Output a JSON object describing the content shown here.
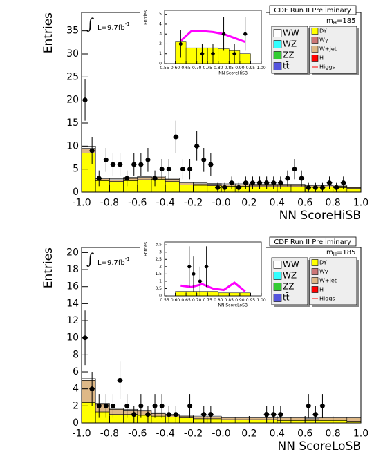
{
  "chart_data": [
    {
      "type": "histogram",
      "title": "CDF Run II Preliminary",
      "x_label": "NN ScoreHiSB",
      "y_label": "Entries",
      "mass_label": {
        "symbol": "m",
        "subscript": "H",
        "value": "=185"
      },
      "luminosity": {
        "symbol": "∫",
        "text": "L=9.7fb",
        "superscript": "-1"
      },
      "xlim": [
        -1,
        1
      ],
      "ylim": [
        0,
        39
      ],
      "xticks": [
        {
          "value": -1,
          "label": "-1.0"
        },
        -0.8,
        -0.6,
        -0.4,
        -0.2,
        {
          "value": 0,
          "label": "-0.0"
        },
        0.2,
        0.4,
        0.6,
        0.8,
        {
          "value": 1,
          "label": "1.0"
        }
      ],
      "yticks": [
        0,
        5,
        10,
        15,
        20,
        25,
        30,
        35
      ],
      "bins": [
        -1,
        -0.9,
        -0.8,
        -0.7,
        -0.6,
        -0.5,
        -0.4,
        -0.3,
        -0.2,
        -0.1,
        0,
        0.1,
        0.2,
        0.3,
        0.4,
        0.5,
        0.6,
        0.7,
        0.8,
        0.9,
        1
      ],
      "series": [
        {
          "name": "WW",
          "color": "#ffffff",
          "values": [
            0.5,
            0.2,
            0.2,
            0.2,
            0.2,
            0.2,
            0.2,
            0.2,
            0.2,
            0.2,
            0.2,
            0.2,
            0.2,
            0.2,
            0.2,
            0.2,
            0.2,
            0.2,
            0.2,
            0.1
          ]
        },
        {
          "name": "WZ",
          "color": "#33ffff"
        },
        {
          "name": "ZZ",
          "color": "#33cc33"
        },
        {
          "name": "tt̄",
          "color": "#5555dd"
        },
        {
          "name": "DY",
          "color": "#ffff00",
          "values": [
            8.5,
            2.5,
            2.3,
            2.5,
            2.7,
            2.8,
            2.3,
            1.6,
            1.5,
            1.4,
            1.3,
            1.3,
            1.2,
            1.2,
            1.2,
            1.2,
            1.1,
            1.1,
            1.0,
            0.8
          ]
        },
        {
          "name": "Wγ",
          "color": "#cc7777"
        },
        {
          "name": "W+jet",
          "color": "#deb887",
          "values": [
            1.0,
            0.4,
            0.4,
            0.5,
            0.5,
            0.5,
            0.5,
            0.4,
            0.3,
            0.3,
            0.3,
            0.3,
            0.3,
            0.3,
            0.3,
            0.3,
            0.3,
            0.3,
            0.3,
            0.2
          ]
        },
        {
          "name": "H",
          "color": "#ff0000"
        },
        {
          "name": "Higgs",
          "color": "#ff0000",
          "style": "line"
        }
      ],
      "data_points": {
        "x": [
          -0.975,
          -0.925,
          -0.875,
          -0.825,
          -0.775,
          -0.725,
          -0.675,
          -0.625,
          -0.575,
          -0.525,
          -0.475,
          -0.425,
          -0.375,
          -0.325,
          -0.275,
          -0.225,
          -0.175,
          -0.125,
          -0.075,
          -0.025,
          0.025,
          0.075,
          0.125,
          0.175,
          0.225,
          0.275,
          0.325,
          0.375,
          0.425,
          0.475,
          0.525,
          0.575,
          0.625,
          0.675,
          0.725,
          0.775,
          0.825,
          0.875
        ],
        "values": [
          20,
          9,
          3,
          7,
          6,
          6,
          3,
          6,
          6,
          7,
          3,
          5,
          5,
          12,
          5,
          5,
          10,
          7,
          6,
          1,
          1,
          2,
          1,
          2,
          2,
          2,
          2,
          2,
          2,
          3,
          5,
          3,
          1,
          1,
          1,
          2,
          1,
          2
        ],
        "errors": [
          4.5,
          3,
          1.7,
          2.6,
          2.4,
          2.4,
          1.7,
          2.4,
          2.4,
          2.6,
          1.7,
          2.2,
          2.2,
          3.5,
          2.2,
          2.2,
          3.2,
          2.6,
          2.4,
          1,
          1,
          1.4,
          1,
          1.4,
          1.4,
          1.4,
          1.4,
          1.4,
          1.4,
          1.7,
          2.2,
          1.7,
          1,
          1,
          1,
          1.4,
          1,
          1.4
        ]
      },
      "inset": {
        "x_label": "NN ScoreHiSB",
        "y_label": "Entries",
        "xlim": [
          0.55,
          1
        ],
        "ylim": [
          0,
          5.4
        ],
        "xticks": [
          0.55,
          {
            "value": 0.6,
            "label": "0.60"
          },
          0.65,
          {
            "value": 0.7,
            "label": "0.70"
          },
          0.75,
          {
            "value": 0.8,
            "label": "0.80"
          },
          0.85,
          {
            "value": 0.9,
            "label": "0.90"
          },
          0.95,
          {
            "value": 1,
            "label": "1.00"
          }
        ],
        "yticks": [
          0,
          1,
          2,
          3,
          4,
          5
        ],
        "bins": [
          0.6,
          0.65,
          0.7,
          0.75,
          0.8,
          0.85,
          0.9,
          0.95
        ],
        "series": [
          {
            "color": "#ffff00",
            "values": [
              2.2,
              1.6,
              1.6,
              1.6,
              1.5,
              1.3,
              1.0
            ]
          },
          {
            "color": "#ff00ff",
            "style": "line",
            "values": [
              2.3,
              3.3,
              3.3,
              3.2,
              3.0,
              2.6,
              2.2
            ]
          }
        ],
        "data_points": {
          "x": [
            0.625,
            0.725,
            0.775,
            0.825,
            0.875,
            0.925
          ],
          "values": [
            2,
            1,
            1,
            3,
            1,
            3
          ],
          "errors": [
            1.4,
            1,
            1,
            1.7,
            1,
            1.7
          ]
        }
      }
    },
    {
      "type": "histogram",
      "title": "CDF Run II Preliminary",
      "x_label": "NN ScoreLoSB",
      "y_label": "Entries",
      "mass_label": {
        "symbol": "m",
        "subscript": "H",
        "value": "=185"
      },
      "luminosity": {
        "symbol": "∫",
        "text": "L=9.7fb",
        "superscript": "-1"
      },
      "xlim": [
        -1,
        1
      ],
      "ylim": [
        0,
        20.6
      ],
      "xticks": [
        {
          "value": -1,
          "label": "-1.0"
        },
        -0.8,
        -0.6,
        -0.4,
        -0.2,
        {
          "value": 0,
          "label": "-0.0"
        },
        0.2,
        0.4,
        0.6,
        0.8,
        {
          "value": 1,
          "label": "1.0"
        }
      ],
      "yticks": [
        0,
        2,
        4,
        6,
        8,
        10,
        12,
        14,
        16,
        18,
        20
      ],
      "bins": [
        -1,
        -0.9,
        -0.8,
        -0.7,
        -0.6,
        -0.5,
        -0.4,
        -0.3,
        -0.2,
        -0.1,
        0,
        0.1,
        0.2,
        0.3,
        0.4,
        0.5,
        0.6,
        0.7,
        0.8,
        0.9,
        1
      ],
      "series": [
        {
          "name": "WW",
          "color": "#ffffff",
          "values": [
            0.2,
            0.1,
            0.1,
            0.1,
            0.1,
            0.1,
            0.1,
            0.1,
            0.1,
            0.1,
            0.1,
            0.1,
            0.1,
            0.1,
            0.1,
            0.1,
            0.1,
            0.1,
            0.1,
            0.1
          ]
        },
        {
          "name": "WZ",
          "color": "#33ffff"
        },
        {
          "name": "ZZ",
          "color": "#33cc33"
        },
        {
          "name": "tt̄",
          "color": "#5555dd"
        },
        {
          "name": "DY",
          "color": "#ffff00",
          "values": [
            2.4,
            1.3,
            1.0,
            1.0,
            0.9,
            0.8,
            0.7,
            0.6,
            0.5,
            0.5,
            0.4,
            0.4,
            0.4,
            0.4,
            0.3,
            0.3,
            0.3,
            0.3,
            0.3,
            0.2
          ]
        },
        {
          "name": "Wγ",
          "color": "#cc7777"
        },
        {
          "name": "W+jet",
          "color": "#deb887",
          "values": [
            2.6,
            0.9,
            0.6,
            0.5,
            0.5,
            0.3,
            0.2,
            0.2,
            0.2,
            0.2,
            0.2,
            0.2,
            0.2,
            0.2,
            0.3,
            0.3,
            0.2,
            0.3,
            0.3,
            0.4
          ]
        },
        {
          "name": "H",
          "color": "#ff0000"
        },
        {
          "name": "Higgs",
          "color": "#ff0000",
          "style": "line"
        }
      ],
      "data_points": {
        "x": [
          -0.975,
          -0.925,
          -0.875,
          -0.825,
          -0.775,
          -0.725,
          -0.675,
          -0.625,
          -0.575,
          -0.525,
          -0.475,
          -0.425,
          -0.375,
          -0.325,
          -0.225,
          -0.125,
          -0.075,
          0.325,
          0.375,
          0.425,
          0.625,
          0.675,
          0.725
        ],
        "values": [
          10,
          4,
          2,
          2,
          2,
          5,
          2,
          1,
          2,
          1,
          2,
          2,
          1,
          1,
          2,
          1,
          1,
          1,
          1,
          1,
          2,
          1,
          2
        ],
        "errors": [
          3.2,
          2,
          1.4,
          1.4,
          1.4,
          2.2,
          1.4,
          1,
          1.4,
          1,
          1.4,
          1.4,
          1,
          1,
          1.4,
          1,
          1,
          1,
          1,
          1,
          1.4,
          1,
          1.4
        ]
      },
      "inset": {
        "x_label": "NN ScoreLoSB",
        "y_label": "Entries",
        "xlim": [
          0.55,
          1
        ],
        "ylim": [
          0,
          3.7
        ],
        "xticks": [
          0.55,
          {
            "value": 0.6,
            "label": "0.60"
          },
          0.65,
          {
            "value": 0.7,
            "label": "0.70"
          },
          0.75,
          {
            "value": 0.8,
            "label": "0.80"
          },
          0.85,
          {
            "value": 0.9,
            "label": "0.90"
          },
          0.95,
          {
            "value": 1,
            "label": "1.00"
          }
        ],
        "yticks": [
          0,
          0.5,
          1,
          1.5,
          2,
          2.5,
          3,
          3.5
        ],
        "bins": [
          0.6,
          0.65,
          0.7,
          0.75,
          0.8,
          0.85,
          0.9,
          0.95
        ],
        "series": [
          {
            "color": "#ffff00",
            "values": [
              0.3,
              0.3,
              0.3,
              0.3,
              0.2,
              0.2,
              0.2
            ]
          },
          {
            "color": "#ff00ff",
            "style": "line",
            "values": [
              0.7,
              0.6,
              0.8,
              0.5,
              0.4,
              0.9,
              0.3
            ]
          }
        ],
        "data_points": {
          "x": [
            0.665,
            0.685,
            0.715,
            0.745
          ],
          "values": [
            2,
            1.5,
            1,
            2
          ],
          "errors": [
            1.4,
            1.2,
            1,
            1.4
          ]
        }
      }
    }
  ]
}
